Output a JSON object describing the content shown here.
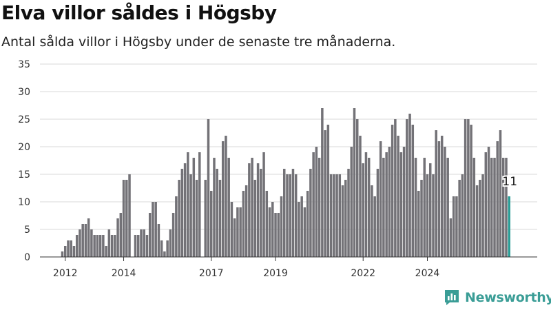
{
  "title": "Elva villor såldes i Högsby",
  "subtitle": "Antal sålda villor i Högsby under de senaste tre månaderna.",
  "brand": {
    "name": "Newsworthy",
    "icon": "newsworthy-logo-icon"
  },
  "colors": {
    "bar": "#737277",
    "highlight": "#2a9d96",
    "grid": "#d9d9d9",
    "axis": "#333333"
  },
  "chart_data": {
    "type": "bar",
    "title": "Elva villor såldes i Högsby",
    "subtitle": "Antal sålda villor i Högsby under de senaste tre månaderna.",
    "xlabel": "",
    "ylabel": "",
    "ylim": [
      0,
      35
    ],
    "yticks": [
      "0",
      "5",
      "10",
      "15",
      "20",
      "25",
      "30",
      "35"
    ],
    "xticks": [
      {
        "label": "2012",
        "index": 1
      },
      {
        "label": "2014",
        "index": 21
      },
      {
        "label": "2017",
        "index": 51
      },
      {
        "label": "2019",
        "index": 73
      },
      {
        "label": "2022",
        "index": 103
      },
      {
        "label": "2024",
        "index": 125
      }
    ],
    "grid": true,
    "highlight_label": "11",
    "values": [
      1,
      2,
      3,
      3,
      2,
      4,
      5,
      6,
      6,
      7,
      5,
      4,
      4,
      4,
      4,
      2,
      5,
      4,
      4,
      7,
      8,
      14,
      14,
      15,
      0,
      4,
      4,
      5,
      5,
      4,
      8,
      10,
      10,
      6,
      3,
      1,
      3,
      5,
      8,
      11,
      14,
      16,
      17,
      19,
      15,
      18,
      14,
      19,
      0,
      14,
      25,
      12,
      18,
      16,
      14,
      21,
      22,
      18,
      10,
      7,
      9,
      9,
      12,
      13,
      17,
      18,
      14,
      17,
      16,
      19,
      12,
      9,
      10,
      8,
      8,
      11,
      16,
      15,
      15,
      16,
      15,
      10,
      11,
      9,
      12,
      16,
      19,
      20,
      18,
      27,
      23,
      24,
      15,
      15,
      15,
      15,
      13,
      14,
      16,
      20,
      27,
      25,
      22,
      17,
      19,
      18,
      13,
      11,
      16,
      21,
      18,
      19,
      20,
      24,
      25,
      22,
      19,
      20,
      25,
      26,
      24,
      18,
      12,
      14,
      18,
      15,
      17,
      15,
      23,
      21,
      22,
      20,
      18,
      7,
      11,
      11,
      14,
      15,
      25,
      25,
      24,
      18,
      13,
      14,
      15,
      19,
      20,
      18,
      18,
      21,
      23,
      18,
      18,
      11
    ]
  }
}
